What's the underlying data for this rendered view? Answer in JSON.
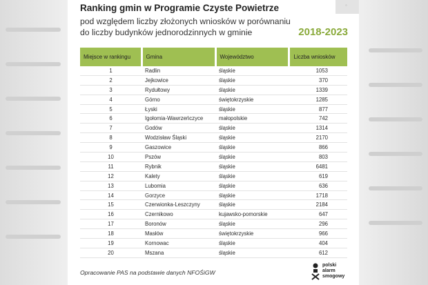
{
  "header": {
    "title": "Ranking gmin w Programie Czyste Powietrze",
    "subtitle_line1": "pod względem liczby złożonych wniosków w porównaniu",
    "subtitle_line2": "do liczby budynków jednorodzinnych w gminie",
    "years": "2018-2023"
  },
  "table": {
    "columns": [
      "Miejsce w rankingu",
      "Gmina",
      "Województwo",
      "Liczba wniosków"
    ],
    "rows": [
      [
        "1",
        "Radlin",
        "śląskie",
        "1053"
      ],
      [
        "2",
        "Jejkowice",
        "śląskie",
        "370"
      ],
      [
        "3",
        "Rydułtowy",
        "śląskie",
        "1339"
      ],
      [
        "4",
        "Górno",
        "świętokrzyskie",
        "1285"
      ],
      [
        "5",
        "Łyski",
        "śląskie",
        "877"
      ],
      [
        "6",
        "Igołomia-Wawrzeńczyce",
        "małopolskie",
        "742"
      ],
      [
        "7",
        "Godów",
        "śląskie",
        "1314"
      ],
      [
        "8",
        "Wodzisław Śląski",
        "śląskie",
        "2170"
      ],
      [
        "9",
        "Gaszowice",
        "śląskie",
        "866"
      ],
      [
        "10",
        "Pszów",
        "śląskie",
        "803"
      ],
      [
        "11",
        "Rybnik",
        "śląskie",
        "6481"
      ],
      [
        "12",
        "Kalety",
        "śląskie",
        "619"
      ],
      [
        "13",
        "Lubomia",
        "śląskie",
        "636"
      ],
      [
        "14",
        "Gorzyce",
        "śląskie",
        "1718"
      ],
      [
        "15",
        "Czerwionka-Leszczyny",
        "śląskie",
        "2184"
      ],
      [
        "16",
        "Czernikowo",
        "kujawsko-pomorskie",
        "647"
      ],
      [
        "17",
        "Boronów",
        "śląskie",
        "296"
      ],
      [
        "18",
        "Masłów",
        "świętokrzyskie",
        "966"
      ],
      [
        "19",
        "Kornowac",
        "śląskie",
        "404"
      ],
      [
        "20",
        "Mszana",
        "śląskie",
        "612"
      ]
    ]
  },
  "footer": {
    "source": "Opracowanie PAS na podstawie danych NFOŚiGW",
    "logo_line1": "polski",
    "logo_line2": "alarm",
    "logo_line3": "smogowy"
  },
  "colors": {
    "accent_green": "#9fbf52",
    "years_green": "#8aaa3b"
  }
}
